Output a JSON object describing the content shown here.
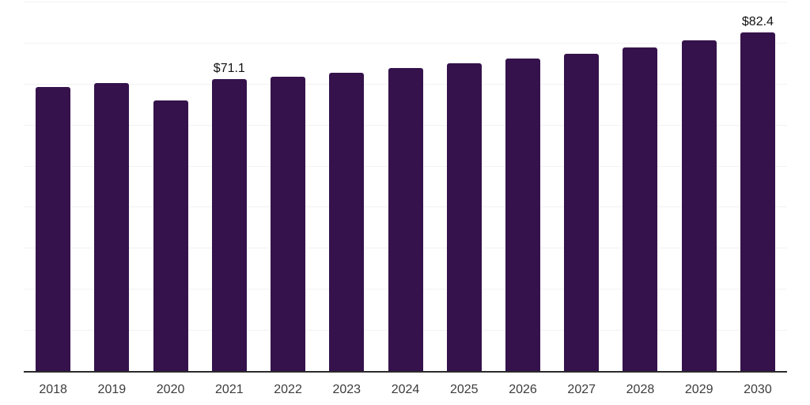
{
  "chart_data": {
    "type": "bar",
    "title": "",
    "xlabel": "",
    "ylabel": "",
    "categories": [
      "2018",
      "2019",
      "2020",
      "2021",
      "2022",
      "2023",
      "2024",
      "2025",
      "2026",
      "2027",
      "2028",
      "2029",
      "2030"
    ],
    "values": [
      69.2,
      70.1,
      65.9,
      71.1,
      71.7,
      72.6,
      73.8,
      74.9,
      76.1,
      77.3,
      78.8,
      80.5,
      82.4
    ],
    "data_labels": [
      "",
      "",
      "",
      "$71.1",
      "",
      "",
      "",
      "",
      "",
      "",
      "",
      "",
      "$82.4"
    ],
    "ylim": [
      0,
      90
    ],
    "grid_interval": 10,
    "grid": true,
    "legend": false,
    "y_tick_labels_visible": false,
    "colors": {
      "bar": "#35124b",
      "gridline": "#f2f2f2",
      "axis_line": "#2b2b2b",
      "tick_label": "#3c3c3c",
      "data_label": "#111111",
      "background": "#ffffff"
    }
  }
}
